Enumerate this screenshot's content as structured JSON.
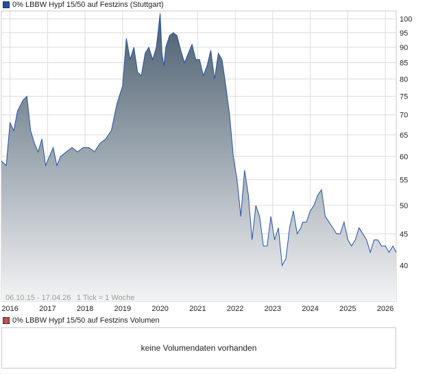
{
  "chart_data": {
    "type": "area",
    "title": "0% LBBW Hypf 15/50 auf Festzins (Stuttgart)",
    "series": [
      {
        "name": "0% LBBW Hypf 15/50 auf Festzins (Stuttgart)",
        "color": "#1f4fa8",
        "x": [
          2015.77,
          2015.9,
          2016.0,
          2016.1,
          2016.2,
          2016.35,
          2016.45,
          2016.55,
          2016.65,
          2016.75,
          2016.85,
          2016.95,
          2017.05,
          2017.15,
          2017.25,
          2017.35,
          2017.5,
          2017.65,
          2017.8,
          2017.95,
          2018.1,
          2018.25,
          2018.4,
          2018.55,
          2018.7,
          2018.85,
          2019.0,
          2019.1,
          2019.2,
          2019.3,
          2019.4,
          2019.5,
          2019.6,
          2019.7,
          2019.8,
          2019.9,
          2020.0,
          2020.05,
          2020.1,
          2020.15,
          2020.25,
          2020.35,
          2020.45,
          2020.55,
          2020.65,
          2020.75,
          2020.85,
          2020.95,
          2021.05,
          2021.15,
          2021.25,
          2021.35,
          2021.45,
          2021.55,
          2021.65,
          2021.75,
          2021.85,
          2021.95,
          2022.05,
          2022.15,
          2022.25,
          2022.35,
          2022.45,
          2022.55,
          2022.65,
          2022.75,
          2022.85,
          2022.95,
          2023.05,
          2023.15,
          2023.25,
          2023.35,
          2023.45,
          2023.55,
          2023.65,
          2023.75,
          2023.8,
          2023.9,
          2024.0,
          2024.1,
          2024.2,
          2024.3,
          2024.4,
          2024.5,
          2024.6,
          2024.7,
          2024.8,
          2024.9,
          2025.0,
          2025.1,
          2025.2,
          2025.3,
          2025.4,
          2025.5,
          2025.6,
          2025.7,
          2025.8,
          2025.9,
          2026.0,
          2026.1,
          2026.2,
          2026.29
        ],
        "values": [
          59,
          58,
          68,
          66,
          71,
          74,
          75,
          66,
          63,
          61,
          64,
          58,
          60,
          62,
          58,
          60,
          61,
          62,
          61,
          62,
          62,
          61,
          63,
          64,
          66,
          73,
          78,
          93,
          86,
          90,
          82,
          81,
          88,
          90,
          86,
          90,
          102,
          88,
          84,
          90,
          94,
          95,
          94,
          89,
          85,
          88,
          91,
          86,
          86,
          81,
          84,
          89,
          80,
          88,
          86,
          78,
          70,
          60,
          55,
          48,
          57,
          52,
          44,
          50,
          48,
          43,
          43,
          48,
          44,
          46,
          40,
          41,
          46,
          49,
          45,
          46,
          47,
          47,
          49,
          50,
          52,
          53,
          48,
          47,
          46,
          45,
          45,
          47,
          44,
          43,
          44,
          46,
          45,
          44,
          42,
          44,
          44,
          43,
          43,
          42,
          43,
          42
        ]
      }
    ],
    "xlim": [
      2015.77,
      2026.29
    ],
    "ylim": [
      35,
      103
    ],
    "y_scale": "log",
    "y_ticks": [
      40,
      45,
      50,
      55,
      60,
      65,
      70,
      75,
      80,
      85,
      90,
      95,
      100
    ],
    "x_ticks": [
      2016,
      2017,
      2018,
      2019,
      2020,
      2021,
      2022,
      2023,
      2024,
      2025,
      2026
    ],
    "x_tick_labels": [
      "2016",
      "2017",
      "2018",
      "2019",
      "2020",
      "2021",
      "2022",
      "2023",
      "2024",
      "2025",
      "2026"
    ],
    "grid": true,
    "legend": "top-left"
  },
  "info": {
    "date_range": "06.10.15 - 17.04.26",
    "tick_note": "1 Tick = 1 Woche"
  },
  "volume": {
    "legend_label": "0% LBBW Hypf 15/50 auf Festzins Volumen",
    "legend_color": "#c05050",
    "message": "keine Volumendaten vorhanden"
  },
  "colors": {
    "line": "#1f4fa8",
    "grid": "#dcdcdc",
    "area_top": "#4a5d6e",
    "area_bottom": "#f3f4f5"
  }
}
